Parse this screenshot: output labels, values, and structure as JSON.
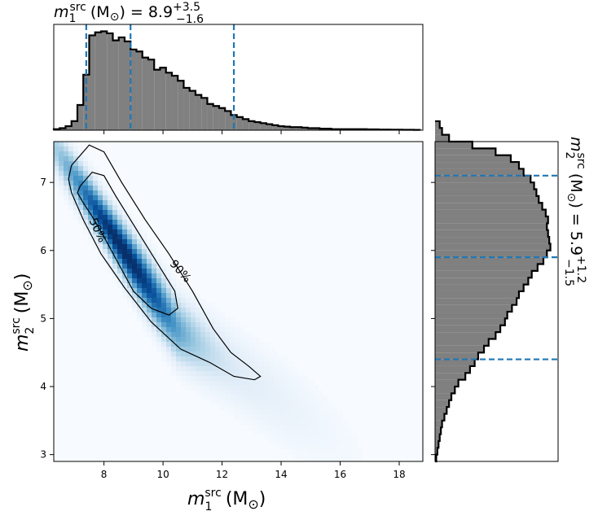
{
  "chart_data": [
    {
      "type": "histogram",
      "variable": "m1_src",
      "title": {
        "symbol": "m",
        "index": "1",
        "sup": "src",
        "unit": "(M",
        "sun": "⊙",
        "close": ")",
        "eq": "= 8.9",
        "plus": "+3.5",
        "minus": "−1.6"
      },
      "xlim": [
        6.3,
        18.8
      ],
      "bins": {
        "edges_start": 6.3,
        "width": 0.2,
        "counts": [
          0.01,
          0.02,
          0.04,
          0.09,
          0.25,
          0.55,
          0.94,
          0.97,
          0.98,
          0.96,
          0.89,
          0.92,
          0.88,
          0.8,
          0.78,
          0.72,
          0.7,
          0.6,
          0.62,
          0.57,
          0.54,
          0.49,
          0.42,
          0.39,
          0.35,
          0.32,
          0.26,
          0.24,
          0.22,
          0.19,
          0.15,
          0.13,
          0.11,
          0.09,
          0.08,
          0.07,
          0.06,
          0.05,
          0.04,
          0.035,
          0.03,
          0.03,
          0.025,
          0.02,
          0.02,
          0.015,
          0.015,
          0.01,
          0.01,
          0.01,
          0.01,
          0.01,
          0.01,
          0.008,
          0.008,
          0.006,
          0.006,
          0.005,
          0.005,
          0.004,
          0.004,
          0.003
        ]
      },
      "quantile_lines": [
        7.4,
        8.9,
        12.4
      ],
      "line_color": "#1f77b4",
      "fill_color": "#808080"
    },
    {
      "type": "heatmap",
      "x_variable": "m1_src",
      "y_variable": "m2_src",
      "xlabel": {
        "symbol": "m",
        "index": "1",
        "sup": "src",
        "unit": "(M",
        "sun": "⊙",
        "close": ")"
      },
      "ylabel": {
        "symbol": "m",
        "index": "2",
        "sup": "src",
        "unit": "(M",
        "sun": "⊙",
        "close": ")"
      },
      "xlim": [
        6.3,
        18.8
      ],
      "ylim": [
        2.9,
        7.6
      ],
      "xticks": [
        8,
        10,
        12,
        14,
        16,
        18
      ],
      "yticks": [
        3,
        4,
        5,
        6,
        7
      ],
      "colormap": "Blues",
      "density_ridge": {
        "y_at_m1_ref": 6.3,
        "m1_ref": 8.2,
        "slope_near": -0.64,
        "slope_far": -0.3,
        "bend_m1": 10.5
      },
      "contours": [
        {
          "label": "50%",
          "label_pos": [
            7.8,
            6.3
          ],
          "label_rotation": 65,
          "points": [
            [
              7.2,
              6.95
            ],
            [
              7.6,
              7.15
            ],
            [
              8.0,
              7.1
            ],
            [
              8.4,
              6.8
            ],
            [
              8.9,
              6.45
            ],
            [
              9.4,
              6.1
            ],
            [
              9.9,
              5.75
            ],
            [
              10.4,
              5.4
            ],
            [
              10.5,
              5.15
            ],
            [
              10.2,
              5.05
            ],
            [
              9.6,
              5.15
            ],
            [
              9.0,
              5.4
            ],
            [
              8.5,
              5.8
            ],
            [
              8.0,
              6.2
            ],
            [
              7.6,
              6.5
            ],
            [
              7.3,
              6.7
            ],
            [
              7.1,
              6.85
            ]
          ]
        },
        {
          "label": "90%",
          "label_pos": [
            10.6,
            5.7
          ],
          "label_rotation": 48,
          "points": [
            [
              6.9,
              7.25
            ],
            [
              7.5,
              7.55
            ],
            [
              8.0,
              7.45
            ],
            [
              8.6,
              7.0
            ],
            [
              9.4,
              6.45
            ],
            [
              10.2,
              5.95
            ],
            [
              11.0,
              5.4
            ],
            [
              11.7,
              4.85
            ],
            [
              12.3,
              4.5
            ],
            [
              12.9,
              4.3
            ],
            [
              13.3,
              4.15
            ],
            [
              13.1,
              4.1
            ],
            [
              12.4,
              4.15
            ],
            [
              11.6,
              4.35
            ],
            [
              10.6,
              4.55
            ],
            [
              9.6,
              4.95
            ],
            [
              8.7,
              5.45
            ],
            [
              7.9,
              5.95
            ],
            [
              7.3,
              6.45
            ],
            [
              6.9,
              6.85
            ],
            [
              6.8,
              7.05
            ]
          ]
        }
      ]
    },
    {
      "type": "histogram",
      "orientation": "horizontal",
      "variable": "m2_src",
      "title": {
        "symbol": "m",
        "index": "2",
        "sup": "src",
        "unit": "(M",
        "sun": "⊙",
        "close": ")",
        "eq": "= 5.9",
        "plus": "+1.2",
        "minus": "−1.5"
      },
      "ylim": [
        2.9,
        7.6
      ],
      "bins": {
        "edges_start": 2.9,
        "width": 0.1,
        "counts": [
          0.01,
          0.02,
          0.03,
          0.04,
          0.05,
          0.06,
          0.08,
          0.1,
          0.12,
          0.14,
          0.17,
          0.2,
          0.26,
          0.3,
          0.34,
          0.37,
          0.42,
          0.46,
          0.52,
          0.56,
          0.6,
          0.62,
          0.66,
          0.7,
          0.72,
          0.76,
          0.8,
          0.83,
          0.88,
          0.93,
          0.96,
          0.99,
          0.98,
          0.97,
          0.96,
          0.97,
          0.95,
          0.92,
          0.89,
          0.87,
          0.85,
          0.82,
          0.76,
          0.72,
          0.65,
          0.52,
          0.32,
          0.12,
          0.06,
          0.04
        ]
      },
      "quantile_lines": [
        4.4,
        5.9,
        7.1
      ],
      "line_color": "#1f77b4",
      "fill_color": "#808080"
    }
  ]
}
